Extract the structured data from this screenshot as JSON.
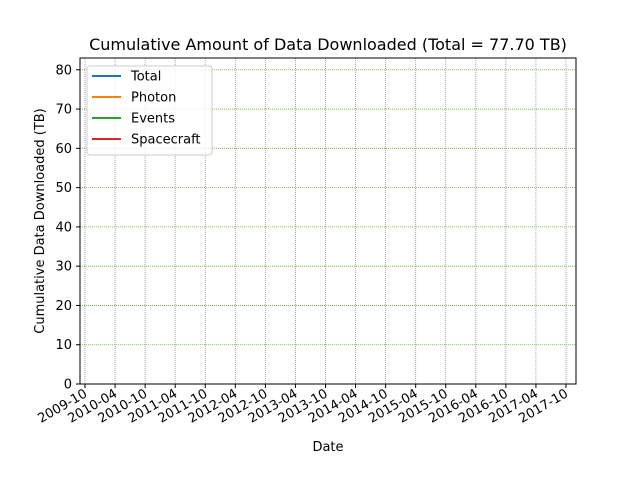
{
  "chart_data": {
    "type": "line",
    "title": "Cumulative Amount of Data Downloaded (Total = 77.70 TB)",
    "xlabel": "Date",
    "ylabel": "Cumulative Data Downloaded (TB)",
    "ylim": [
      0,
      83
    ],
    "yticks": [
      0,
      10,
      20,
      30,
      40,
      50,
      60,
      70,
      80
    ],
    "xlim": [
      "2009-09",
      "2017-12"
    ],
    "xticks": [
      "2009-10",
      "2010-04",
      "2010-10",
      "2011-04",
      "2011-10",
      "2012-04",
      "2012-10",
      "2013-04",
      "2013-10",
      "2014-04",
      "2014-10",
      "2015-04",
      "2015-10",
      "2016-04",
      "2016-10",
      "2017-04",
      "2017-10"
    ],
    "grid": true,
    "legend": {
      "position": "top-left",
      "entries": [
        {
          "label": "Total",
          "color": "#1f77b4"
        },
        {
          "label": "Photon",
          "color": "#ff7f0e"
        },
        {
          "label": "Events",
          "color": "#2ca02c"
        },
        {
          "label": "Spacecraft",
          "color": "#d62728"
        }
      ]
    },
    "series": [
      {
        "name": "Total",
        "color": "#1f77b4",
        "values": []
      },
      {
        "name": "Photon",
        "color": "#ff7f0e",
        "values": []
      },
      {
        "name": "Events",
        "color": "#2ca02c",
        "values": []
      },
      {
        "name": "Spacecraft",
        "color": "#d62728",
        "values": []
      }
    ]
  }
}
